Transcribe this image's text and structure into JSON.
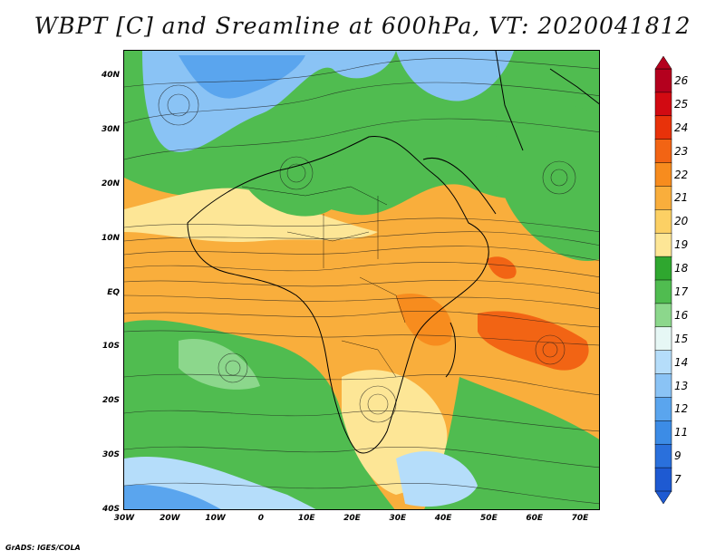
{
  "title": "WBPT [C] and Sreamline at 600hPa, VT: 2020041812",
  "credit": "GrADS: IGES/COLA",
  "map": {
    "lat_labels": [
      "40N",
      "30N",
      "20N",
      "10N",
      "EQ",
      "10S",
      "20S",
      "30S",
      "40S"
    ],
    "lon_labels": [
      "30W",
      "20W",
      "10W",
      "0",
      "10E",
      "20E",
      "30E",
      "40E",
      "50E",
      "60E",
      "70E"
    ]
  },
  "colorbar": {
    "labels": [
      "26",
      "25",
      "24",
      "23",
      "22",
      "21",
      "20",
      "19",
      "18",
      "17",
      "16",
      "15",
      "14",
      "13",
      "12",
      "11",
      "9",
      "7"
    ],
    "colors": [
      "#b4001e",
      "#d20a12",
      "#e8320a",
      "#f26414",
      "#f78c1e",
      "#f9ae3c",
      "#fcd064",
      "#fde696",
      "#2fa72f",
      "#50bc50",
      "#8cd78c",
      "#e6f7f5",
      "#b5ddfa",
      "#8ac3f5",
      "#5aa5ee",
      "#3c8ce6",
      "#2a70dc",
      "#1e5ad2"
    ]
  }
}
